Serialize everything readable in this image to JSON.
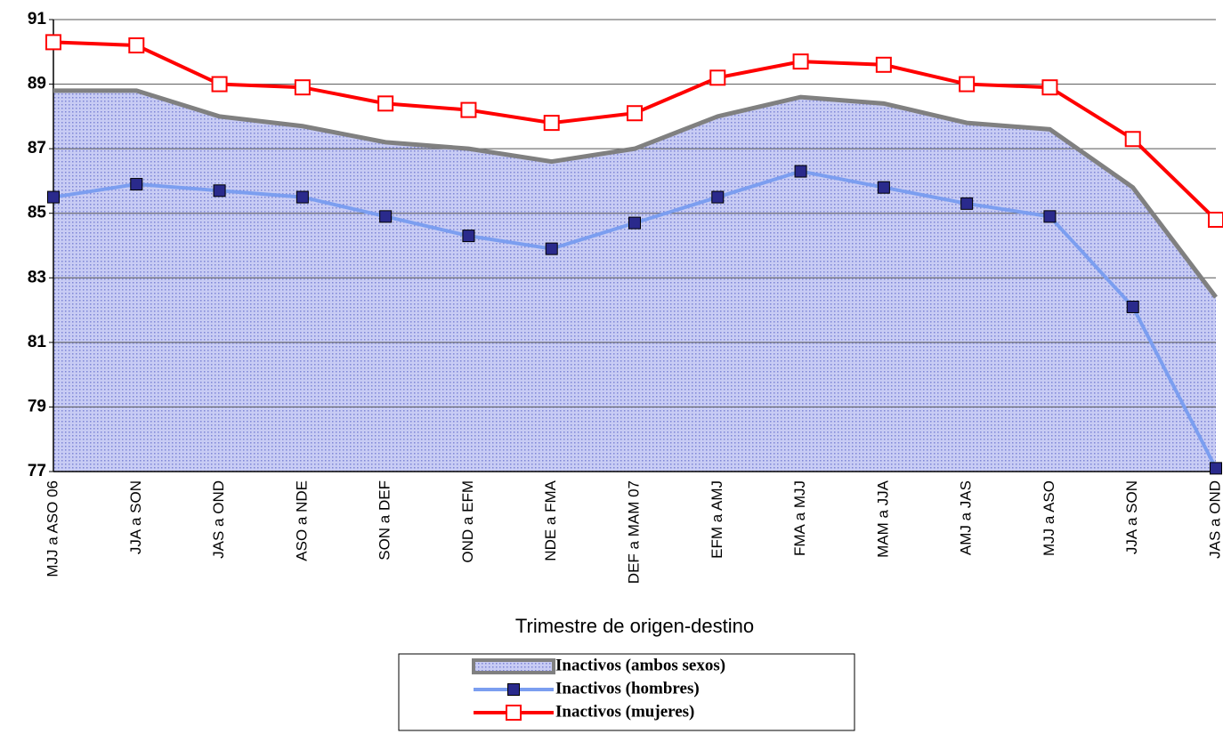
{
  "chart_data": {
    "type": "line",
    "xlabel": "Trimestre de origen-destino",
    "categories": [
      "MJJ a ASO 06",
      "JJA a SON",
      "JAS a OND",
      "ASO a NDE",
      "SON a DEF",
      "OND a EFM",
      "NDE a FMA",
      "DEF a MAM 07",
      "EFM a AMJ",
      "FMA a MJJ",
      "MAM a JJA",
      "AMJ a JAS",
      "MJJ a ASO",
      "JJA a SON",
      "JAS a OND"
    ],
    "series": [
      {
        "name": "Inactivos (ambos sexos)",
        "style": "area",
        "color": "#808080",
        "fill": "#c8ccf4",
        "values": [
          88.8,
          88.8,
          88.0,
          87.7,
          87.2,
          87.0,
          86.6,
          87.0,
          88.0,
          88.6,
          88.4,
          87.8,
          87.6,
          85.8,
          82.4
        ]
      },
      {
        "name": "Inactivos (hombres)",
        "style": "line",
        "color": "#7b9ef0",
        "marker_fill": "#2a2a8c",
        "values": [
          85.5,
          85.9,
          85.7,
          85.5,
          84.9,
          84.3,
          83.9,
          84.7,
          85.5,
          86.3,
          85.8,
          85.3,
          84.9,
          82.1,
          77.1
        ]
      },
      {
        "name": "Inactivos (mujeres)",
        "style": "line",
        "color": "#ff0000",
        "marker_fill": "#ffffff",
        "values": [
          90.3,
          90.2,
          89.0,
          88.9,
          88.4,
          88.2,
          87.8,
          88.1,
          89.2,
          89.7,
          89.6,
          89.0,
          88.9,
          87.3,
          84.8
        ]
      }
    ],
    "ylim": [
      77,
      91
    ],
    "yticks": [
      77,
      79,
      81,
      83,
      85,
      87,
      89,
      91
    ],
    "grid": true
  }
}
